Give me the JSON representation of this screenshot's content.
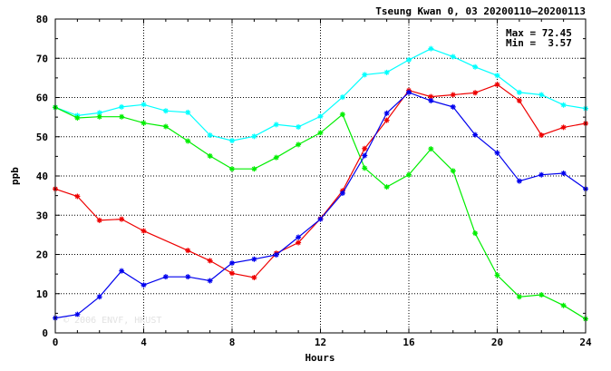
{
  "title": "Tseung Kwan 0, 03 20200110–20200113",
  "stats": {
    "max": "Max = 72.45",
    "min": "Min =  3.57"
  },
  "watermark": "© 2006 ENVF, HKUST",
  "chart_data": {
    "type": "line",
    "xlabel": "Hours",
    "ylabel": "ppb",
    "xlim": [
      0,
      24
    ],
    "ylim": [
      0,
      80
    ],
    "xticks": [
      0,
      4,
      8,
      12,
      16,
      20,
      24
    ],
    "yticks": [
      0,
      10,
      20,
      30,
      40,
      50,
      60,
      70,
      80
    ],
    "grid": true,
    "x": [
      0,
      1,
      2,
      3,
      4,
      5,
      6,
      7,
      8,
      9,
      10,
      11,
      12,
      13,
      14,
      15,
      16,
      17,
      18,
      19,
      20,
      21,
      22,
      23,
      24
    ],
    "series": [
      {
        "color": "#00ffff",
        "values": [
          57.5,
          55.4,
          56.1,
          57.6,
          58.2,
          56.6,
          56.2,
          50.4,
          49.0,
          50.1,
          53.1,
          52.5,
          55.2,
          60.1,
          65.8,
          66.4,
          69.6,
          72.45,
          70.4,
          67.8,
          65.6,
          61.3,
          60.7,
          58.1,
          57.2
        ]
      },
      {
        "color": "#00ee00",
        "values": [
          57.5,
          54.8,
          55.1,
          55.1,
          53.5,
          52.6,
          48.9,
          45.1,
          41.8,
          41.8,
          44.7,
          48.0,
          51.0,
          55.7,
          42.0,
          37.2,
          40.3,
          46.9,
          41.3,
          25.4,
          14.7,
          9.2,
          9.7,
          7.0,
          3.57
        ]
      },
      {
        "color": "#ee0000",
        "values": [
          36.7,
          34.8,
          28.7,
          29.0,
          26.0,
          null,
          21.0,
          18.4,
          15.2,
          14.1,
          20.3,
          23.0,
          29.1,
          36.2,
          47.0,
          54.2,
          61.8,
          60.2,
          60.7,
          61.2,
          63.3,
          59.2,
          50.4,
          52.4,
          53.4
        ]
      },
      {
        "color": "#0000ee",
        "values": [
          3.8,
          4.7,
          9.2,
          15.8,
          12.2,
          14.3,
          14.3,
          13.3,
          17.8,
          18.8,
          19.9,
          24.4,
          29.0,
          35.6,
          45.2,
          56.0,
          61.3,
          59.2,
          57.6,
          50.5,
          45.9,
          38.7,
          40.3,
          40.7,
          36.7
        ]
      }
    ]
  }
}
